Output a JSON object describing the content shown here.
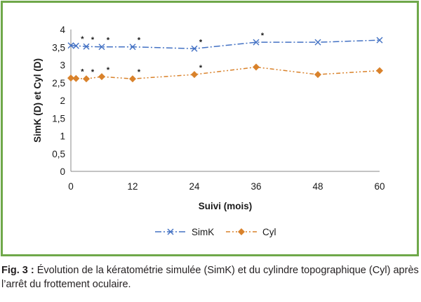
{
  "chart_data": {
    "type": "line",
    "title": "",
    "xlabel": "Suivi (mois)",
    "ylabel": "SimK (D) et Cyl (D)",
    "xlim": [
      0,
      60
    ],
    "ylim": [
      0,
      4
    ],
    "x_ticks": [
      "0",
      "12",
      "24",
      "36",
      "48",
      "60"
    ],
    "y_ticks": [
      "0",
      "0,5",
      "1",
      "1,5",
      "2",
      "2,5",
      "3",
      "3,5",
      "4"
    ],
    "grid": false,
    "legend_position": "bottom-center",
    "series": [
      {
        "name": "SimK",
        "color": "#4472c4",
        "marker": "x",
        "x": [
          0,
          1,
          3,
          6,
          12,
          24,
          36,
          48,
          60
        ],
        "y": [
          3.55,
          3.54,
          3.52,
          3.51,
          3.51,
          3.46,
          3.64,
          3.64,
          3.7
        ],
        "significance": [
          "",
          "*",
          "*",
          "*",
          "*",
          "*",
          "*",
          "",
          ""
        ]
      },
      {
        "name": "Cyl",
        "color": "#d9822b",
        "marker": "diamond",
        "x": [
          0,
          1,
          3,
          6,
          12,
          24,
          36,
          48,
          60
        ],
        "y": [
          2.63,
          2.62,
          2.61,
          2.67,
          2.61,
          2.73,
          2.94,
          2.73,
          2.84
        ],
        "significance": [
          "",
          "*",
          "*",
          "*",
          "*",
          "*",
          "",
          "",
          ""
        ]
      }
    ]
  },
  "caption": {
    "label": "Fig. 3 :",
    "text": " Évolution de la kératométrie simulée (SimK) et du cylindre topographique (Cyl) après l’arrêt du frottement oculaire."
  }
}
